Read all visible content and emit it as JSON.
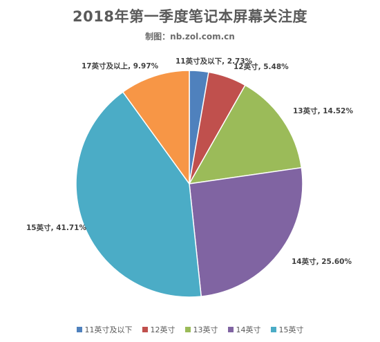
{
  "chart_data": {
    "type": "pie",
    "title": "2018年第一季度笔记本屏幕关注度",
    "subtitle": "制图：nb.zol.com.cn",
    "categories": [
      "11英寸及以下",
      "12英寸",
      "13英寸",
      "14英寸",
      "15英寸",
      "17英寸及以上"
    ],
    "values": [
      2.73,
      5.48,
      14.52,
      25.6,
      41.71,
      9.97
    ],
    "unit": "%",
    "labels": [
      "11英寸及以下, 2.73%",
      "12英寸, 5.48%",
      "13英寸, 14.52%",
      "14英寸, 25.60%",
      "15英寸, 41.71%",
      "17英寸及以上, 9.97%"
    ],
    "colors": [
      "#4f81bd",
      "#c0504d",
      "#9bbb59",
      "#8064a2",
      "#4bacc6",
      "#f79646"
    ],
    "start_angle": "top",
    "direction": "clockwise",
    "legend": {
      "position": "bottom",
      "items": [
        "11英寸及以下",
        "12英寸",
        "13英寸",
        "14英寸",
        "15英寸"
      ]
    }
  }
}
